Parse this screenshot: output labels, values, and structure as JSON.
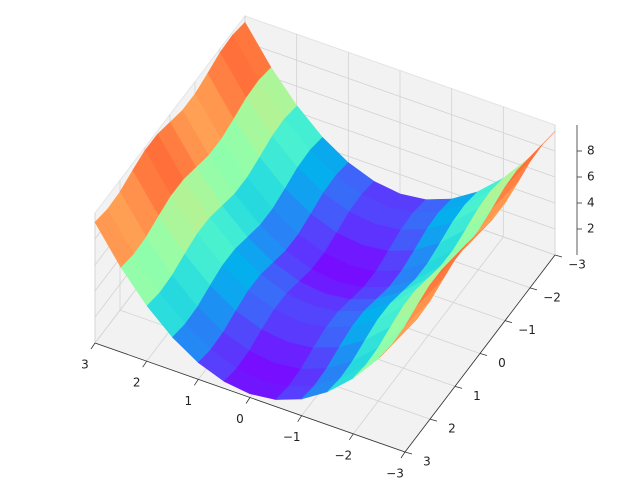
{
  "chart_data": {
    "type": "surface",
    "cmap": "rainbow",
    "x": [
      -3,
      -2.5,
      -2,
      -1.5,
      -1,
      -0.5,
      0,
      0.5,
      1,
      1.5,
      2,
      2.5,
      3
    ],
    "y": [
      -3,
      -2.5,
      -2,
      -1.5,
      -1,
      -0.5,
      0,
      0.5,
      1,
      1.5,
      2,
      2.5,
      3
    ],
    "z": [
      [
        9.51,
        9.78,
        9.7,
        9.34,
        9.04,
        9.06,
        9.4,
        9.74,
        9.76,
        9.46,
        9.1,
        9.02,
        9.29
      ],
      [
        6.76,
        7.03,
        6.95,
        6.59,
        6.29,
        6.31,
        6.65,
        6.99,
        7.01,
        6.71,
        6.35,
        6.27,
        6.54
      ],
      [
        4.51,
        4.78,
        4.7,
        4.34,
        4.04,
        4.06,
        4.4,
        4.74,
        4.76,
        4.46,
        4.1,
        4.02,
        4.29
      ],
      [
        2.76,
        3.03,
        2.95,
        2.59,
        2.29,
        2.31,
        2.65,
        2.99,
        3.01,
        2.71,
        2.35,
        2.27,
        2.54
      ],
      [
        1.51,
        1.78,
        1.7,
        1.34,
        1.04,
        1.06,
        1.4,
        1.74,
        1.76,
        1.46,
        1.1,
        1.02,
        1.29
      ],
      [
        0.76,
        1.03,
        0.95,
        0.59,
        0.29,
        0.31,
        0.65,
        0.99,
        1.01,
        0.71,
        0.35,
        0.27,
        0.54
      ],
      [
        0.51,
        0.78,
        0.7,
        0.34,
        0.04,
        0.06,
        0.4,
        0.74,
        0.76,
        0.46,
        0.1,
        0.02,
        0.29
      ],
      [
        0.76,
        1.03,
        0.95,
        0.59,
        0.29,
        0.31,
        0.65,
        0.99,
        1.01,
        0.71,
        0.35,
        0.27,
        0.54
      ],
      [
        1.51,
        1.78,
        1.7,
        1.34,
        1.04,
        1.06,
        1.4,
        1.74,
        1.76,
        1.46,
        1.1,
        1.02,
        1.29
      ],
      [
        2.76,
        3.03,
        2.95,
        2.59,
        2.29,
        2.31,
        2.65,
        2.99,
        3.01,
        2.71,
        2.35,
        2.27,
        2.54
      ],
      [
        4.51,
        4.78,
        4.7,
        4.34,
        4.04,
        4.06,
        4.4,
        4.74,
        4.76,
        4.46,
        4.1,
        4.02,
        4.29
      ],
      [
        6.76,
        7.03,
        6.95,
        6.59,
        6.29,
        6.31,
        6.65,
        6.99,
        7.01,
        6.71,
        6.35,
        6.27,
        6.54
      ],
      [
        9.51,
        9.78,
        9.7,
        9.34,
        9.04,
        9.06,
        9.4,
        9.74,
        9.76,
        9.46,
        9.1,
        9.02,
        9.29
      ]
    ],
    "xlim": [
      -3,
      3
    ],
    "ylim": [
      -3,
      3
    ],
    "zlim": [
      0,
      10
    ],
    "xticks": [
      {
        "value": -3,
        "label": "−3"
      },
      {
        "value": -2,
        "label": "−2"
      },
      {
        "value": -1,
        "label": "−1"
      },
      0,
      1,
      2,
      3
    ],
    "yticks": [
      {
        "value": -3,
        "label": "−3"
      },
      {
        "value": -2,
        "label": "−2"
      },
      {
        "value": -1,
        "label": "−1"
      },
      0,
      1,
      2,
      3
    ],
    "zticks": [
      2,
      4,
      6,
      8
    ],
    "grid": true
  }
}
